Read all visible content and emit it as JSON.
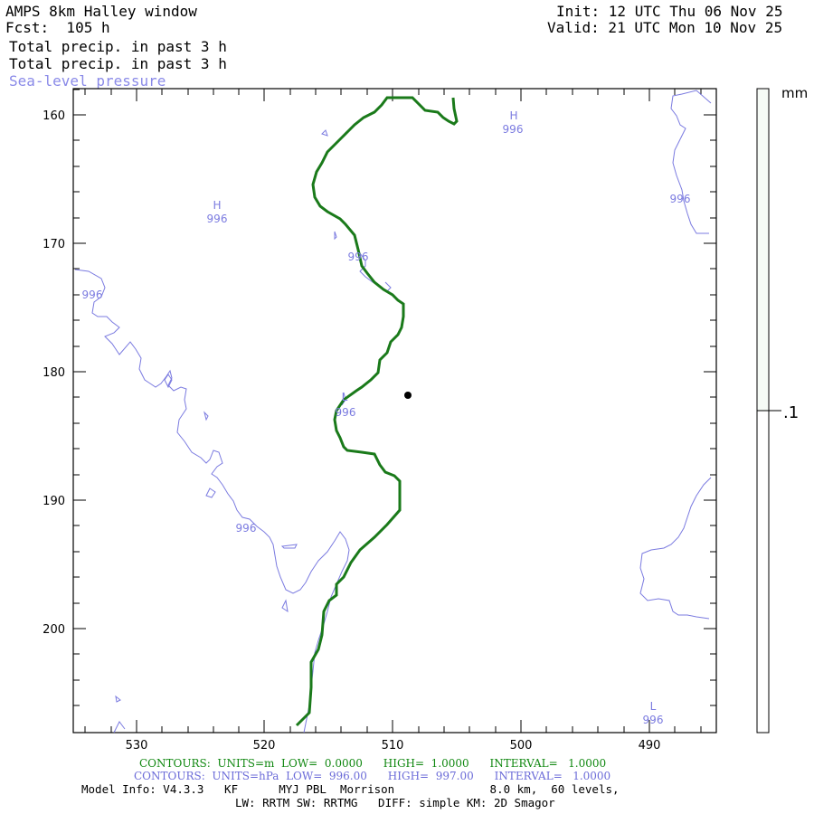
{
  "header": {
    "title": "AMPS 8km Halley window",
    "forecast": "Fcst:  105 h",
    "init": "Init: 12 UTC Thu 06 Nov 25",
    "valid": "Valid: 21 UTC Mon 10 Nov 25",
    "field1": "Total precip. in past 3 h",
    "field2": "Total precip. in past 3 h",
    "field3": "Sea-level pressure"
  },
  "axes": {
    "y_ticks": [
      "160",
      "170",
      "180",
      "190",
      "200"
    ],
    "x_ticks": [
      "530",
      "520",
      "510",
      "500",
      "490"
    ]
  },
  "colorbar": {
    "unit": "mm",
    "label": ".1"
  },
  "map_labels": {
    "high1": "H",
    "high1_value": "996",
    "high2": "H",
    "high2_value": "996",
    "low1": "L",
    "low1_value": "996",
    "low2": "L",
    "low2_value": "996",
    "isobar_labels": [
      "996",
      "996",
      "996",
      "996"
    ]
  },
  "footer": {
    "contours_green": "CONTOURS:  UNITS=m  LOW=  0.0000      HIGH=  1.0000      INTERVAL=   1.0000",
    "contours_blue": "CONTOURS:  UNITS=hPa  LOW=  996.00      HIGH=  997.00      INTERVAL=   1.0000",
    "model_info": "Model Info: V4.3.3   KF      MYJ PBL  Morrison              8.0 km,  60 levels,",
    "model_info2": "LW: RRTM SW: RRTMG   DIFF: simple KM: 2D Smagor"
  },
  "colors": {
    "green_contour": "#1a7a1a",
    "blue_contour": "#7b7be0",
    "footer_green": "#118811",
    "footer_blue": "#6b6bd8"
  }
}
